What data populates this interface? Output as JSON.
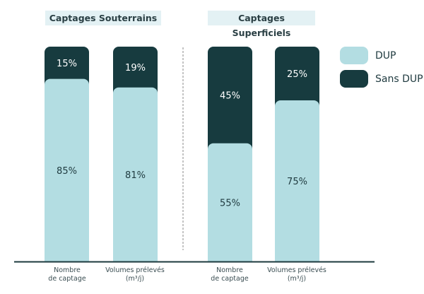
{
  "chart_data": {
    "type": "bar",
    "stacked": true,
    "groups": [
      {
        "title": "Captages Souterrains",
        "categories": [
          "Nombre de captage",
          "Volumes prélevés (m³/j)"
        ]
      },
      {
        "title": "Captages Superficiels",
        "categories": [
          "Nombre de captage",
          "Volumes prélevés (m³/j)"
        ]
      }
    ],
    "categories": [
      {
        "line1": "Nombre",
        "line2": "de captage"
      },
      {
        "line1": "Volumes prélevés",
        "line2": "(m³/j)"
      },
      {
        "line1": "Nombre",
        "line2": "de captage"
      },
      {
        "line1": "Volumes prélevés",
        "line2": "(m³/j)"
      }
    ],
    "series": [
      {
        "name": "DUP",
        "color": "#b3dde2",
        "values": [
          85,
          81,
          55,
          75
        ],
        "labels": [
          "85%",
          "81%",
          "55%",
          "75%"
        ]
      },
      {
        "name": "Sans DUP",
        "color": "#173b3f",
        "values": [
          15,
          19,
          45,
          25
        ],
        "labels": [
          "15%",
          "19%",
          "45%",
          "25%"
        ]
      }
    ],
    "ylim": [
      0,
      100
    ],
    "grid": false,
    "legend": "right"
  }
}
